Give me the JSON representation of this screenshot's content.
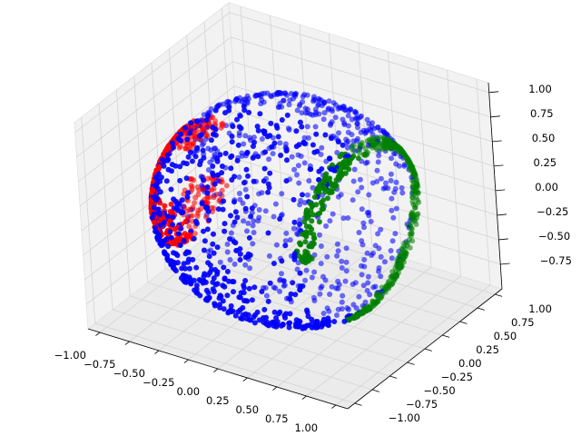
{
  "chart_data": {
    "type": "scatter",
    "projection": "3d",
    "title": "",
    "xlabel": "",
    "ylabel": "",
    "zlabel": "",
    "xlim": [
      -1.1,
      1.1
    ],
    "ylim": [
      -1.1,
      1.1
    ],
    "zlim": [
      -1.0,
      1.1
    ],
    "grid": true,
    "x_ticks": [
      "−1.00",
      "−0.75",
      "−0.50",
      "−0.25",
      "0.00",
      "0.25",
      "0.50",
      "0.75",
      "1.00"
    ],
    "y_ticks": [
      "−1.00",
      "−0.75",
      "−0.50",
      "−0.25",
      "0.00",
      "0.25",
      "0.50",
      "0.75",
      "1.00"
    ],
    "z_ticks": [
      "−0.75",
      "−0.50",
      "−0.25",
      "0.00",
      "0.25",
      "0.50",
      "0.75",
      "1.00"
    ],
    "x_tick_values": [
      -1.0,
      -0.75,
      -0.5,
      -0.25,
      0.0,
      0.25,
      0.5,
      0.75,
      1.0
    ],
    "y_tick_values": [
      -1.0,
      -0.75,
      -0.5,
      -0.25,
      0.0,
      0.25,
      0.5,
      0.75,
      1.0
    ],
    "z_tick_values": [
      -0.75,
      -0.5,
      -0.25,
      0.0,
      0.25,
      0.5,
      0.75,
      1.0
    ],
    "series": [
      {
        "name": "blue",
        "color": "#0000ff",
        "description": "filled hemisphere of points on the unit sphere (x ≤ 0.6)"
      },
      {
        "name": "red",
        "color": "#ff0000",
        "description": "points along the left edge near x ≈ -0.9"
      },
      {
        "name": "green",
        "color": "#008000",
        "description": "points along the rim x² + z² ≈ 1, y ≈ 0.6"
      }
    ]
  },
  "colors": {
    "pane": "#f2f2f2",
    "pane_dark": "#ebebeb",
    "grid": "#d4d4d4"
  }
}
